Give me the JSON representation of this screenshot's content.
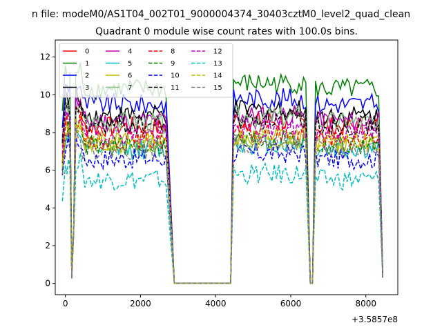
{
  "chart_data": {
    "type": "line",
    "suptitle": "n file: modeM0/AS1T04_002T01_9000004374_30403cztM0_level2_quad_clean",
    "title": "Quadrant 0 module wise count rates with 100.0s bins.",
    "xlabel": "",
    "ylabel": "",
    "x_offset_label": "+3.5857e8",
    "xlim": [
      -270,
      8850
    ],
    "ylim": [
      -0.6,
      12.9
    ],
    "x_ticks": [
      0,
      2000,
      4000,
      6000,
      8000
    ],
    "x_tick_labels": [
      "0",
      "2000",
      "4000",
      "6000",
      "8000"
    ],
    "y_ticks": [
      0,
      2,
      4,
      6,
      8,
      10,
      12
    ],
    "y_tick_labels": [
      "0",
      "2",
      "4",
      "6",
      "8",
      "10",
      "12"
    ],
    "grid": false,
    "legend_placement": "top-left",
    "legend_columns": 4,
    "series": [
      {
        "name": "0",
        "color": "#ff0000",
        "dash": "solid",
        "level": 8.3
      },
      {
        "name": "1",
        "color": "#008000",
        "dash": "solid",
        "level": 10.3
      },
      {
        "name": "2",
        "color": "#0000ff",
        "dash": "solid",
        "level": 9.5
      },
      {
        "name": "3",
        "color": "#000000",
        "dash": "solid",
        "level": 8.9
      },
      {
        "name": "4",
        "color": "#bf00bf",
        "dash": "solid",
        "level": 8.6
      },
      {
        "name": "5",
        "color": "#00bfbf",
        "dash": "solid",
        "level": 7.1
      },
      {
        "name": "6",
        "color": "#bfbf00",
        "dash": "solid",
        "level": 7.5
      },
      {
        "name": "7",
        "color": "#7fbf7f",
        "dash": "solid",
        "level": 8.5
      },
      {
        "name": "8",
        "color": "#ff0000",
        "dash": "dashed",
        "level": 7.6
      },
      {
        "name": "9",
        "color": "#008000",
        "dash": "dashed",
        "level": 7.3
      },
      {
        "name": "10",
        "color": "#0000ff",
        "dash": "dashed",
        "level": 6.6
      },
      {
        "name": "11",
        "color": "#000000",
        "dash": "dashed",
        "level": 8.4
      },
      {
        "name": "12",
        "color": "#bf00bf",
        "dash": "dashed",
        "level": 7.9
      },
      {
        "name": "13",
        "color": "#00bfbf",
        "dash": "dashed",
        "level": 5.5
      },
      {
        "name": "14",
        "color": "#bfbf00",
        "dash": "dashed",
        "level": 7.4
      },
      {
        "name": "15",
        "color": "#7f7f7f",
        "dash": "dashed",
        "level": 7.1
      }
    ]
  }
}
